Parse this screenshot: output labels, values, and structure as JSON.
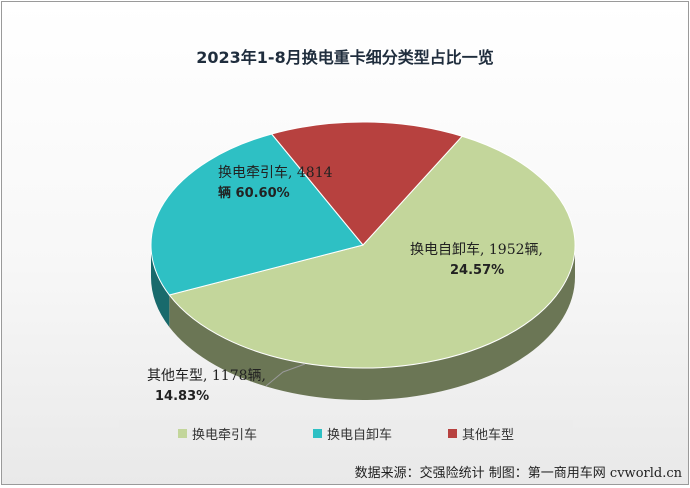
{
  "chart_data": {
    "type": "pie",
    "title": "2023年1-8月换电重卡细分类型占比一览",
    "slices": [
      {
        "name": "换电牵引车",
        "value": 4814,
        "percent": 60.6,
        "color": "#c3d69b"
      },
      {
        "name": "换电自卸车",
        "value": 1952,
        "percent": 24.57,
        "color": "#2ec0c4"
      },
      {
        "name": "其他车型",
        "value": 1178,
        "percent": 14.83,
        "color": "#b7413f"
      }
    ],
    "labels": [
      {
        "line1": "换电牵引车, 4814",
        "line2": "辆 60.60%"
      },
      {
        "line1": "换电自卸车, 1952辆,",
        "line2": "24.57%"
      },
      {
        "line1": "其他车型, 1178辆,",
        "line2": "14.83%"
      }
    ],
    "legend_position": "bottom"
  },
  "source": "数据来源：交强险统计  制图：第一商用车网 cvworld.cn"
}
